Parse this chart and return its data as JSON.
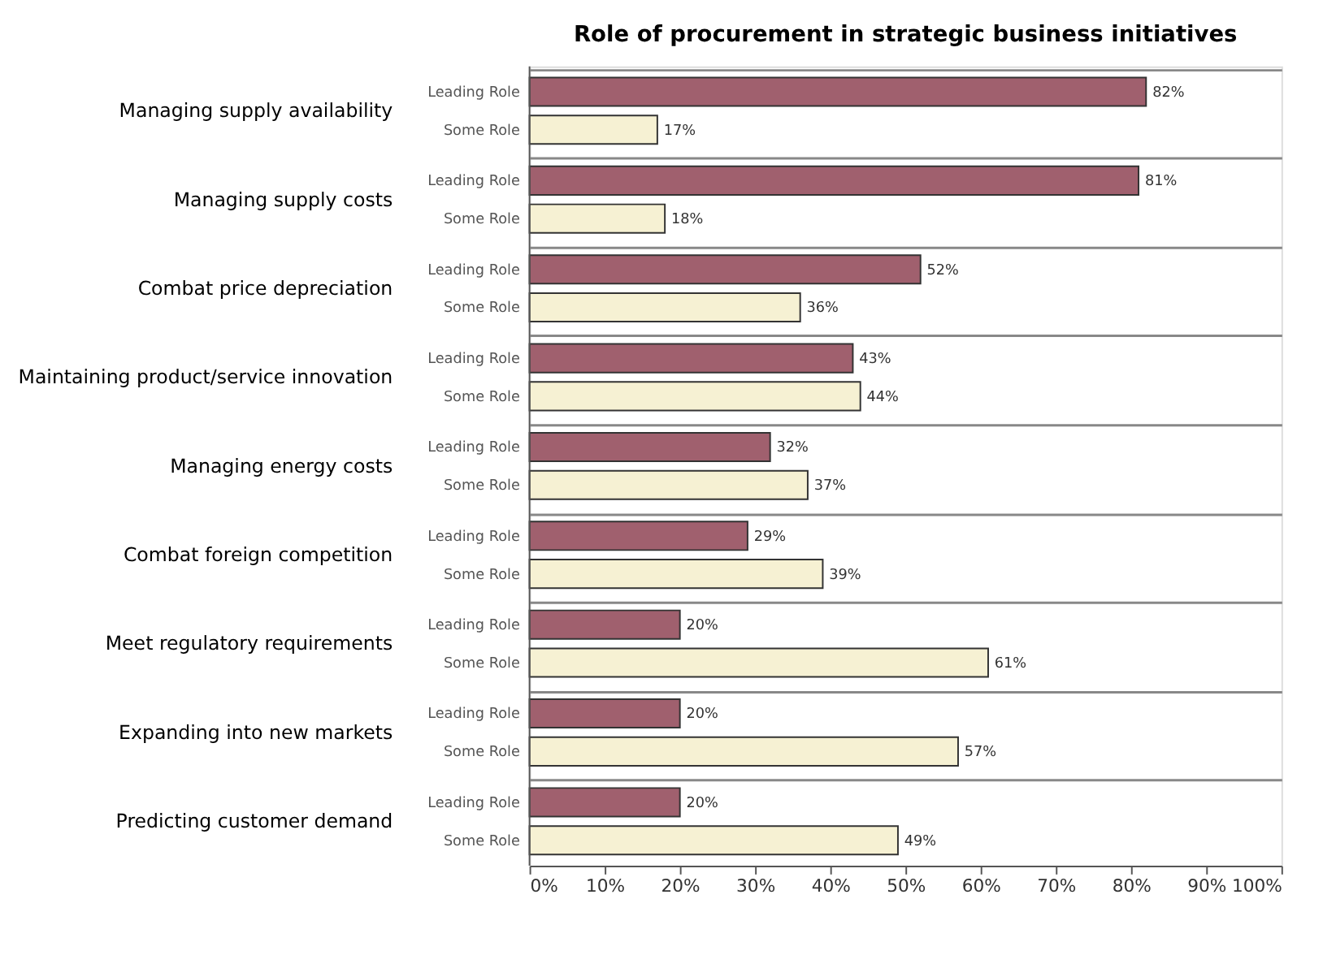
{
  "chart_data": {
    "type": "bar",
    "orientation": "horizontal",
    "title": "Role of procurement in strategic business initiatives",
    "categories": [
      "Managing supply availability",
      "Managing supply costs",
      "Combat price depreciation",
      "Maintaining product/service innovation",
      "Managing energy costs",
      "Combat foreign competition",
      "Meet regulatory requirements",
      "Expanding into new markets",
      "Predicting customer demand"
    ],
    "series": [
      {
        "name": "Leading Role",
        "color": "#a0606e",
        "values": [
          82,
          81,
          52,
          43,
          32,
          29,
          20,
          20,
          20
        ],
        "value_labels": [
          "82%",
          "81%",
          "52%",
          "43%",
          "32%",
          "29%",
          "20%",
          "20%",
          "20%"
        ]
      },
      {
        "name": "Some Role",
        "color": "#f6f1d3",
        "values": [
          17,
          18,
          36,
          44,
          37,
          39,
          61,
          57,
          49
        ],
        "value_labels": [
          "17%",
          "18%",
          "36%",
          "44%",
          "37%",
          "39%",
          "61%",
          "57%",
          "49%"
        ]
      }
    ],
    "xlim": [
      0,
      100
    ],
    "xticks": [
      {
        "value": 0,
        "label": "0%"
      },
      {
        "value": 10,
        "label": "10%"
      },
      {
        "value": 20,
        "label": "20%"
      },
      {
        "value": 30,
        "label": "30%"
      },
      {
        "value": 40,
        "label": "40%"
      },
      {
        "value": 50,
        "label": "50%"
      },
      {
        "value": 60,
        "label": "60%"
      },
      {
        "value": 70,
        "label": "70%"
      },
      {
        "value": 80,
        "label": "80%"
      },
      {
        "value": 90,
        "label": "90%"
      },
      {
        "value": 100,
        "label": "100%"
      }
    ],
    "grid": "y",
    "legend": false
  }
}
